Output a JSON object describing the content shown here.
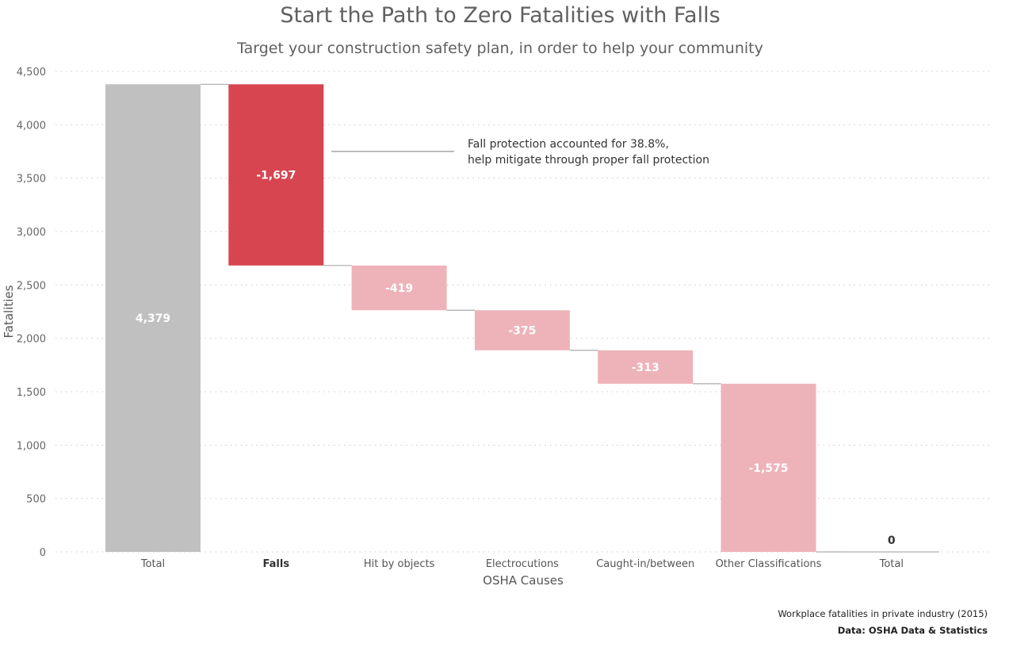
{
  "chart_data": {
    "type": "waterfall",
    "title": "Start the Path to Zero Fatalities with Falls",
    "subtitle": "Target your construction safety plan, in order to help your community",
    "xlabel": "OSHA Causes",
    "ylabel": "Fatalities",
    "ylim": [
      0,
      4500
    ],
    "yticks": [
      0,
      500,
      1000,
      1500,
      2000,
      2500,
      3000,
      3500,
      4000,
      4500
    ],
    "ytick_labels": [
      "0",
      "500",
      "1,000",
      "1,500",
      "2,000",
      "2,500",
      "3,000",
      "3,500",
      "4,000",
      "4,500"
    ],
    "grid": true,
    "categories": [
      "Total",
      "Falls",
      "Hit by objects",
      "Electrocutions",
      "Caught-in/between",
      "Other Classifications",
      "Total"
    ],
    "steps": [
      {
        "category": "Total",
        "kind": "total",
        "value": 4379,
        "label": "4,379",
        "color": "#c0c0c0",
        "label_color": "#ffffff"
      },
      {
        "category": "Falls",
        "kind": "delta",
        "value": -1697,
        "label": "-1,697",
        "color": "#d64550",
        "label_color": "#ffffff",
        "highlight": true
      },
      {
        "category": "Hit by objects",
        "kind": "delta",
        "value": -419,
        "label": "-419",
        "color": "#eeb3b9",
        "label_color": "#ffffff"
      },
      {
        "category": "Electrocutions",
        "kind": "delta",
        "value": -375,
        "label": "-375",
        "color": "#eeb3b9",
        "label_color": "#ffffff"
      },
      {
        "category": "Caught-in/between",
        "kind": "delta",
        "value": -313,
        "label": "-313",
        "color": "#eeb3b9",
        "label_color": "#ffffff"
      },
      {
        "category": "Other Classifications",
        "kind": "delta",
        "value": -1575,
        "label": "-1,575",
        "color": "#eeb3b9",
        "label_color": "#ffffff"
      },
      {
        "category": "Total",
        "kind": "total",
        "value": 0,
        "label": "0",
        "color": "#c0c0c0",
        "label_color": "#333333"
      }
    ],
    "annotation": {
      "line1": "Fall protection accounted for 38.8%,",
      "line2": "help mitigate through proper fall protection",
      "at_value": 3750
    },
    "colors": {
      "connector": "#aaaaaa",
      "grid": "#cccccc"
    }
  },
  "footnote": {
    "line1": "Workplace fatalities in private industry (2015)",
    "line2": "Data: OSHA Data & Statistics"
  }
}
